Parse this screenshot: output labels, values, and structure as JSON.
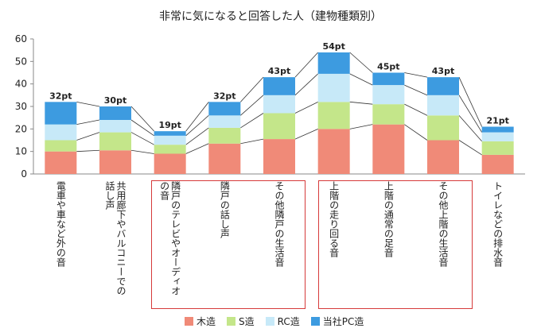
{
  "chart_data": {
    "type": "bar",
    "stacked": true,
    "title": "非常に気になると回答した人（建物種類別）",
    "ylim": [
      0,
      60
    ],
    "yticks": [
      0,
      10,
      20,
      30,
      40,
      50,
      60
    ],
    "grid": false,
    "legend_position": "bottom",
    "categories": [
      "電車や車など外の音",
      "共用廊下やバルコニーでの\n話し声",
      "隣戸のテレビやオーディオ\nの音",
      "隣戸の話し声",
      "その他隣戸の生活音",
      "上階の走り回る音",
      "上階の通常の足音",
      "その他上階の生活音",
      "トイレなどの排水音"
    ],
    "series": [
      {
        "name": "木造",
        "color": "#f08a78",
        "values": [
          10,
          10.5,
          9,
          13.5,
          15.5,
          20,
          22,
          15,
          8.5
        ]
      },
      {
        "name": "S造",
        "color": "#c4e68a",
        "values": [
          5,
          8,
          4,
          7,
          11.5,
          12,
          9,
          11,
          6
        ]
      },
      {
        "name": "RC造",
        "color": "#c7e9f8",
        "values": [
          7,
          5.5,
          4,
          5.5,
          8,
          12.5,
          8.5,
          9,
          4
        ]
      },
      {
        "name": "当社PC造",
        "color": "#3d9be0",
        "values": [
          10,
          6,
          2,
          6,
          8,
          9.5,
          5.5,
          8,
          2.5
        ]
      }
    ],
    "totals": [
      "32pt",
      "30pt",
      "19pt",
      "32pt",
      "43pt",
      "54pt",
      "45pt",
      "43pt",
      "21pt"
    ]
  }
}
